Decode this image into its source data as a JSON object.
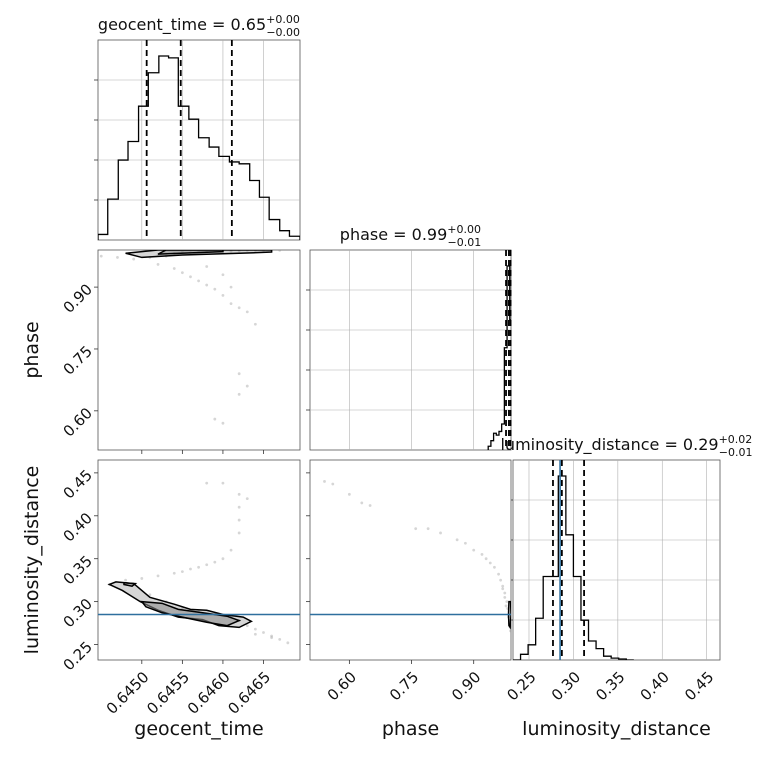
{
  "chart_data": {
    "type": "corner",
    "parameters": [
      "geocent_time",
      "phase",
      "luminosity_distance"
    ],
    "axis_labels": {
      "geocent_time": "geocent_time",
      "phase": "phase",
      "luminosity_distance": "luminosity_distance"
    },
    "ranges": {
      "geocent_time": [
        0.64446,
        0.64695
      ],
      "phase": [
        0.505,
        0.99
      ],
      "luminosity_distance": [
        0.232,
        0.465
      ]
    },
    "ticks": {
      "geocent_time": [
        0.645,
        0.6455,
        0.646,
        0.6465
      ],
      "phase": [
        0.6,
        0.75,
        0.9
      ],
      "luminosity_distance": [
        0.25,
        0.3,
        0.35,
        0.4,
        0.45
      ]
    },
    "tick_labels": {
      "geocent_time": [
        "0.6450",
        "0.6455",
        "0.6460",
        "0.6465"
      ],
      "phase": [
        "0.60",
        "0.75",
        "0.90"
      ],
      "luminosity_distance": [
        "0.25",
        "0.30",
        "0.35",
        "0.40",
        "0.45"
      ]
    },
    "titles": {
      "geocent_time": {
        "text": "geocent_time = 0.65",
        "plus": "+0.00",
        "minus": "−0.00"
      },
      "phase": {
        "text": "phase = 0.99",
        "plus": "+0.00",
        "minus": "−0.01"
      },
      "luminosity_distance": {
        "text": "luminosity_distance = 0.29",
        "plus": "+0.02",
        "minus": "−0.01"
      }
    },
    "quantiles": {
      "geocent_time": [
        0.64506,
        0.64548,
        0.64611
      ],
      "phase": [
        0.978,
        0.985,
        0.989
      ],
      "luminosity_distance": [
        0.277,
        0.287,
        0.312
      ]
    },
    "truths": {
      "luminosity_distance": 0.285
    },
    "histograms": {
      "geocent_time": {
        "bin_edges": [
          0.64446,
          0.64458,
          0.64471,
          0.64483,
          0.64496,
          0.64508,
          0.64521,
          0.64533,
          0.64545,
          0.64558,
          0.6457,
          0.64583,
          0.64595,
          0.64608,
          0.6462,
          0.64633,
          0.64645,
          0.64657,
          0.6467,
          0.64682,
          0.64695
        ],
        "counts": [
          0.03,
          0.22,
          0.43,
          0.53,
          0.72,
          0.9,
          0.99,
          0.98,
          0.72,
          0.65,
          0.55,
          0.5,
          0.45,
          0.42,
          0.41,
          0.32,
          0.23,
          0.11,
          0.05,
          0.02
        ]
      },
      "phase": {
        "bin_edges": [
          0.935,
          0.9415,
          0.948,
          0.9545,
          0.961,
          0.9675,
          0.974,
          0.9805,
          0.987,
          0.9935
        ],
        "counts": [
          0.02,
          0.05,
          0.09,
          0.08,
          0.1,
          0.14,
          0.55,
          0.99,
          0.7
        ]
      },
      "luminosity_distance": {
        "bin_edges": [
          0.232,
          0.2405,
          0.249,
          0.2575,
          0.266,
          0.2745,
          0.283,
          0.2915,
          0.3,
          0.3085,
          0.317,
          0.3255,
          0.334,
          0.3425,
          0.351,
          0.3595,
          0.368
        ],
        "counts": [
          0.0,
          0.03,
          0.08,
          0.22,
          0.44,
          0.44,
          0.97,
          0.66,
          0.44,
          0.21,
          0.1,
          0.06,
          0.02,
          0.01,
          0.005,
          0.0
        ]
      }
    },
    "scatter": {
      "geocent_time__phase": [
        [
          0.6445,
          0.975
        ],
        [
          0.6447,
          0.972
        ],
        [
          0.6449,
          0.968
        ],
        [
          0.6451,
          0.972
        ],
        [
          0.6452,
          0.978
        ],
        [
          0.6453,
          0.975
        ],
        [
          0.6454,
          0.982
        ],
        [
          0.6455,
          0.985
        ],
        [
          0.6456,
          0.984
        ],
        [
          0.6457,
          0.986
        ],
        [
          0.6458,
          0.987
        ],
        [
          0.6459,
          0.988
        ],
        [
          0.646,
          0.988
        ],
        [
          0.6461,
          0.987
        ],
        [
          0.6462,
          0.988
        ],
        [
          0.6463,
          0.989
        ],
        [
          0.6464,
          0.989
        ],
        [
          0.6465,
          0.989
        ],
        [
          0.6466,
          0.989
        ],
        [
          0.6467,
          0.989
        ],
        [
          0.6452,
          0.955
        ],
        [
          0.6454,
          0.945
        ],
        [
          0.6455,
          0.935
        ],
        [
          0.6456,
          0.925
        ],
        [
          0.6457,
          0.915
        ],
        [
          0.6458,
          0.905
        ],
        [
          0.6459,
          0.895
        ],
        [
          0.646,
          0.88
        ],
        [
          0.6461,
          0.86
        ],
        [
          0.6462,
          0.85
        ],
        [
          0.6461,
          0.9
        ],
        [
          0.6463,
          0.84
        ],
        [
          0.6464,
          0.81
        ],
        [
          0.6462,
          0.69
        ],
        [
          0.6463,
          0.66
        ],
        [
          0.6462,
          0.64
        ],
        [
          0.6459,
          0.58
        ],
        [
          0.646,
          0.57
        ],
        [
          0.646,
          0.93
        ],
        [
          0.6458,
          0.95
        ]
      ],
      "geocent_time__luminosity_distance": [
        [
          0.6446,
          0.32
        ],
        [
          0.6448,
          0.325
        ],
        [
          0.645,
          0.327
        ],
        [
          0.6452,
          0.33
        ],
        [
          0.6454,
          0.333
        ],
        [
          0.6455,
          0.335
        ],
        [
          0.6456,
          0.338
        ],
        [
          0.6457,
          0.34
        ],
        [
          0.6458,
          0.343
        ],
        [
          0.6459,
          0.346
        ],
        [
          0.646,
          0.35
        ],
        [
          0.6461,
          0.36
        ],
        [
          0.6462,
          0.38
        ],
        [
          0.6462,
          0.395
        ],
        [
          0.6462,
          0.41
        ],
        [
          0.6463,
          0.42
        ],
        [
          0.6462,
          0.425
        ],
        [
          0.646,
          0.438
        ],
        [
          0.6458,
          0.438
        ],
        [
          0.6449,
          0.32
        ],
        [
          0.6451,
          0.308
        ],
        [
          0.6453,
          0.3
        ],
        [
          0.6455,
          0.292
        ],
        [
          0.6457,
          0.288
        ],
        [
          0.6459,
          0.285
        ],
        [
          0.6461,
          0.282
        ],
        [
          0.6462,
          0.278
        ],
        [
          0.6463,
          0.272
        ],
        [
          0.6464,
          0.268
        ],
        [
          0.6465,
          0.264
        ],
        [
          0.6466,
          0.26
        ],
        [
          0.6467,
          0.256
        ],
        [
          0.6468,
          0.252
        ],
        [
          0.6466,
          0.258
        ],
        [
          0.6464,
          0.262
        ]
      ],
      "phase__luminosity_distance": [
        [
          0.54,
          0.44
        ],
        [
          0.56,
          0.437
        ],
        [
          0.6,
          0.425
        ],
        [
          0.63,
          0.415
        ],
        [
          0.65,
          0.412
        ],
        [
          0.76,
          0.385
        ],
        [
          0.79,
          0.385
        ],
        [
          0.82,
          0.38
        ],
        [
          0.86,
          0.372
        ],
        [
          0.88,
          0.368
        ],
        [
          0.9,
          0.36
        ],
        [
          0.92,
          0.355
        ],
        [
          0.93,
          0.35
        ],
        [
          0.94,
          0.345
        ],
        [
          0.95,
          0.34
        ],
        [
          0.96,
          0.332
        ],
        [
          0.965,
          0.325
        ],
        [
          0.97,
          0.318
        ],
        [
          0.975,
          0.31
        ],
        [
          0.98,
          0.3
        ],
        [
          0.982,
          0.292
        ],
        [
          0.985,
          0.285
        ],
        [
          0.987,
          0.278
        ],
        [
          0.988,
          0.27
        ],
        [
          0.975,
          0.305
        ],
        [
          0.978,
          0.295
        ],
        [
          0.984,
          0.282
        ],
        [
          0.986,
          0.275
        ],
        [
          0.989,
          0.266
        ],
        [
          0.97,
          0.315
        ]
      ]
    },
    "contours": {
      "geocent_time__phase": [
        [
          [
            0.645,
            0.972
          ],
          [
            0.6455,
            0.978
          ],
          [
            0.6462,
            0.982
          ],
          [
            0.6466,
            0.985
          ],
          [
            0.6466,
            0.99
          ],
          [
            0.6452,
            0.99
          ],
          [
            0.6448,
            0.982
          ],
          [
            0.645,
            0.972
          ]
        ],
        [
          [
            0.6452,
            0.98
          ],
          [
            0.6456,
            0.983
          ],
          [
            0.646,
            0.986
          ],
          [
            0.646,
            0.99
          ],
          [
            0.6453,
            0.99
          ],
          [
            0.6452,
            0.98
          ]
        ]
      ],
      "geocent_time__luminosity_distance": [
        [
          [
            0.64468,
            0.323
          ],
          [
            0.6449,
            0.321
          ],
          [
            0.6451,
            0.305
          ],
          [
            0.6454,
            0.297
          ],
          [
            0.6456,
            0.291
          ],
          [
            0.6458,
            0.29
          ],
          [
            0.646,
            0.285
          ],
          [
            0.64625,
            0.282
          ],
          [
            0.64635,
            0.277
          ],
          [
            0.6462,
            0.27
          ],
          [
            0.64595,
            0.272
          ],
          [
            0.64575,
            0.279
          ],
          [
            0.64545,
            0.282
          ],
          [
            0.6452,
            0.29
          ],
          [
            0.64498,
            0.3
          ],
          [
            0.64476,
            0.313
          ],
          [
            0.6446,
            0.32
          ],
          [
            0.64468,
            0.323
          ]
        ],
        [
          [
            0.645,
            0.3
          ],
          [
            0.64525,
            0.298
          ],
          [
            0.64545,
            0.291
          ],
          [
            0.64575,
            0.287
          ],
          [
            0.64605,
            0.283
          ],
          [
            0.6462,
            0.278
          ],
          [
            0.64605,
            0.272
          ],
          [
            0.6458,
            0.276
          ],
          [
            0.6455,
            0.282
          ],
          [
            0.64525,
            0.287
          ],
          [
            0.64505,
            0.294
          ],
          [
            0.645,
            0.3
          ]
        ],
        [
          [
            0.64478,
            0.322
          ],
          [
            0.64492,
            0.321
          ],
          [
            0.64488,
            0.318
          ],
          [
            0.64478,
            0.32
          ]
        ]
      ],
      "phase__luminosity_distance": [
        [
          [
            0.985,
            0.3
          ],
          [
            0.989,
            0.3
          ],
          [
            0.99,
            0.285
          ],
          [
            0.988,
            0.27
          ],
          [
            0.985,
            0.272
          ],
          [
            0.984,
            0.285
          ],
          [
            0.985,
            0.3
          ]
        ]
      ]
    },
    "colors": {
      "histogram": "#000000",
      "quantile": "#000000",
      "truth": "#2e6f9e",
      "contour": "#000000",
      "density": "#8a8a8a",
      "grid": "#b0b0b0"
    }
  }
}
